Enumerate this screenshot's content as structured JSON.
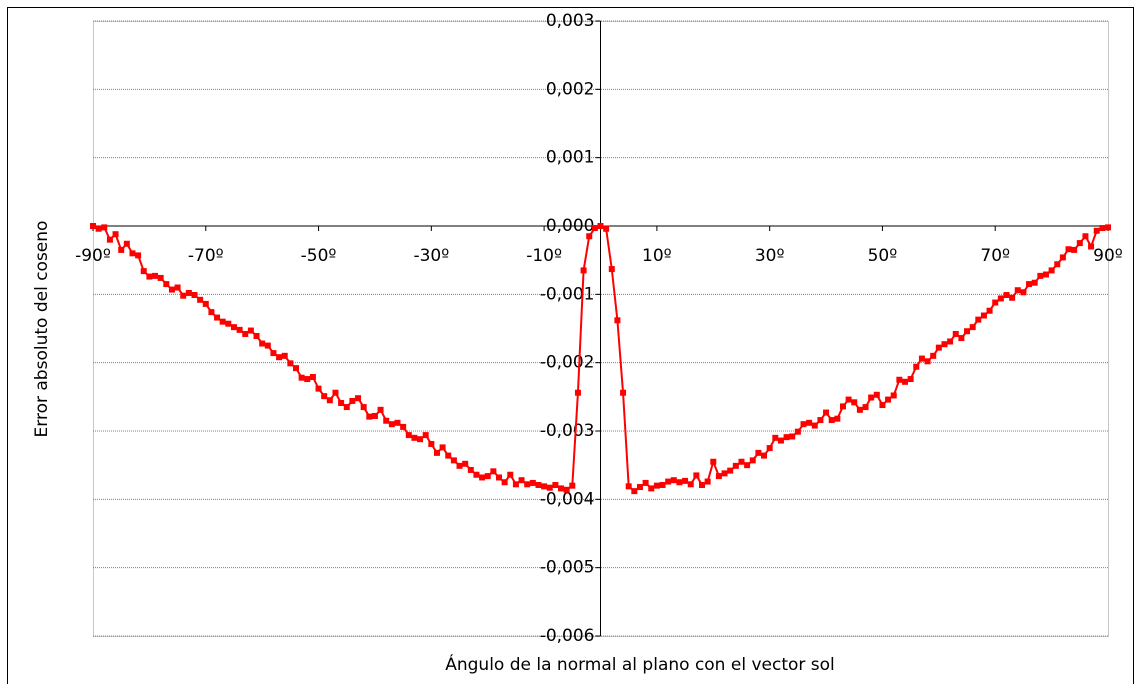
{
  "chart_data": {
    "type": "line",
    "x_label": "Ángulo de la normal al plano con el vector sol",
    "y_label": "Error absoluto del coseno",
    "x": [
      -90,
      -89,
      -88,
      -87,
      -86,
      -85,
      -84,
      -83,
      -82,
      -81,
      -80,
      -79,
      -78,
      -77,
      -76,
      -75,
      -74,
      -73,
      -72,
      -71,
      -70,
      -69,
      -68,
      -67,
      -66,
      -65,
      -64,
      -63,
      -62,
      -61,
      -60,
      -59,
      -58,
      -57,
      -56,
      -55,
      -54,
      -53,
      -52,
      -51,
      -50,
      -49,
      -48,
      -47,
      -46,
      -45,
      -44,
      -43,
      -42,
      -41,
      -40,
      -39,
      -38,
      -37,
      -36,
      -35,
      -34,
      -33,
      -32,
      -31,
      -30,
      -29,
      -28,
      -27,
      -26,
      -25,
      -24,
      -23,
      -22,
      -21,
      -20,
      -19,
      -18,
      -17,
      -16,
      -15,
      -14,
      -13,
      -12,
      -11,
      -10,
      -9,
      -8,
      -7,
      -6,
      -5,
      -4,
      -3,
      -2,
      -1,
      0,
      1,
      2,
      3,
      4,
      5,
      6,
      7,
      8,
      9,
      10,
      11,
      12,
      13,
      14,
      15,
      16,
      17,
      18,
      19,
      20,
      21,
      22,
      23,
      24,
      25,
      26,
      27,
      28,
      29,
      30,
      31,
      32,
      33,
      34,
      35,
      36,
      37,
      38,
      39,
      40,
      41,
      42,
      43,
      44,
      45,
      46,
      47,
      48,
      49,
      50,
      51,
      52,
      53,
      54,
      55,
      56,
      57,
      58,
      59,
      60,
      61,
      62,
      63,
      64,
      65,
      66,
      67,
      68,
      69,
      70,
      71,
      72,
      73,
      74,
      75,
      76,
      77,
      78,
      79,
      80,
      81,
      82,
      83,
      84,
      85,
      86,
      87,
      88,
      89,
      90
    ],
    "series": [
      {
        "color": "#ff0000",
        "values": [
          0,
          -4e-05,
          -2e-05,
          -0.0002,
          -0.00012,
          -0.00035,
          -0.00026,
          -0.0004,
          -0.00043,
          -0.00066,
          -0.00074,
          -0.00073,
          -0.00076,
          -0.00085,
          -0.00093,
          -0.0009,
          -0.00102,
          -0.00098,
          -0.00101,
          -0.00108,
          -0.00114,
          -0.00126,
          -0.00134,
          -0.0014,
          -0.00143,
          -0.00148,
          -0.00152,
          -0.00158,
          -0.00153,
          -0.00161,
          -0.00172,
          -0.00175,
          -0.00186,
          -0.00192,
          -0.0019,
          -0.00201,
          -0.00208,
          -0.00222,
          -0.00224,
          -0.00221,
          -0.00238,
          -0.00249,
          -0.00255,
          -0.00244,
          -0.00259,
          -0.00265,
          -0.00256,
          -0.00252,
          -0.00265,
          -0.00279,
          -0.00278,
          -0.00269,
          -0.00285,
          -0.0029,
          -0.00288,
          -0.00294,
          -0.00306,
          -0.0031,
          -0.00312,
          -0.00306,
          -0.00319,
          -0.00332,
          -0.00324,
          -0.00336,
          -0.00343,
          -0.00351,
          -0.00348,
          -0.00357,
          -0.00364,
          -0.00368,
          -0.00366,
          -0.00359,
          -0.00368,
          -0.00375,
          -0.00364,
          -0.00378,
          -0.00372,
          -0.00378,
          -0.00376,
          -0.00379,
          -0.00381,
          -0.00383,
          -0.00379,
          -0.00384,
          -0.00386,
          -0.0038,
          -0.00244,
          -0.00065,
          -0.00015,
          -3e-05,
          0,
          -4e-05,
          -0.00063,
          -0.00138,
          -0.00244,
          -0.00381,
          -0.00388,
          -0.00382,
          -0.00376,
          -0.00384,
          -0.0038,
          -0.00379,
          -0.00374,
          -0.00372,
          -0.00375,
          -0.00373,
          -0.00378,
          -0.00365,
          -0.00379,
          -0.00374,
          -0.00345,
          -0.00366,
          -0.00362,
          -0.00358,
          -0.00351,
          -0.00345,
          -0.0035,
          -0.00343,
          -0.00332,
          -0.00336,
          -0.00325,
          -0.0031,
          -0.00314,
          -0.00309,
          -0.00308,
          -0.00301,
          -0.0029,
          -0.00288,
          -0.00292,
          -0.00284,
          -0.00273,
          -0.00284,
          -0.00282,
          -0.00264,
          -0.00254,
          -0.00258,
          -0.00269,
          -0.00265,
          -0.00251,
          -0.00247,
          -0.00262,
          -0.00254,
          -0.00248,
          -0.00225,
          -0.00228,
          -0.00224,
          -0.00206,
          -0.00194,
          -0.00198,
          -0.0019,
          -0.00178,
          -0.00173,
          -0.00169,
          -0.00158,
          -0.00164,
          -0.00154,
          -0.00148,
          -0.00137,
          -0.00131,
          -0.00124,
          -0.00112,
          -0.00106,
          -0.00101,
          -0.00105,
          -0.00094,
          -0.00097,
          -0.00085,
          -0.00083,
          -0.00073,
          -0.00071,
          -0.00065,
          -0.00056,
          -0.00046,
          -0.00034,
          -0.00035,
          -0.00025,
          -0.00015,
          -0.0003,
          -7e-05,
          -3e-05,
          -2e-05
        ]
      }
    ],
    "xlim": [
      -90,
      90
    ],
    "xticks": [
      {
        "value": -90,
        "label": "-90º"
      },
      {
        "value": -70,
        "label": "-70º"
      },
      {
        "value": -50,
        "label": "-50º"
      },
      {
        "value": -30,
        "label": "-30º"
      },
      {
        "value": -10,
        "label": "-10º"
      },
      {
        "value": 10,
        "label": "10º"
      },
      {
        "value": 30,
        "label": "30º"
      },
      {
        "value": 50,
        "label": "50º"
      },
      {
        "value": 70,
        "label": "70º"
      },
      {
        "value": 90,
        "label": "90º"
      }
    ],
    "ylim": [
      -0.006,
      0.003
    ],
    "yticks": [
      {
        "value": 0.003,
        "label": "0,003"
      },
      {
        "value": 0.002,
        "label": "0,002"
      },
      {
        "value": 0.001,
        "label": "0,001"
      },
      {
        "value": 0,
        "label": "0,000"
      },
      {
        "value": -0.001,
        "label": "-0,001"
      },
      {
        "value": -0.002,
        "label": "-0,002"
      },
      {
        "value": -0.003,
        "label": "-0,003"
      },
      {
        "value": -0.004,
        "label": "-0,004"
      },
      {
        "value": -0.005,
        "label": "-0,005"
      },
      {
        "value": -0.006,
        "label": "-0,006"
      }
    ],
    "grid": true
  }
}
